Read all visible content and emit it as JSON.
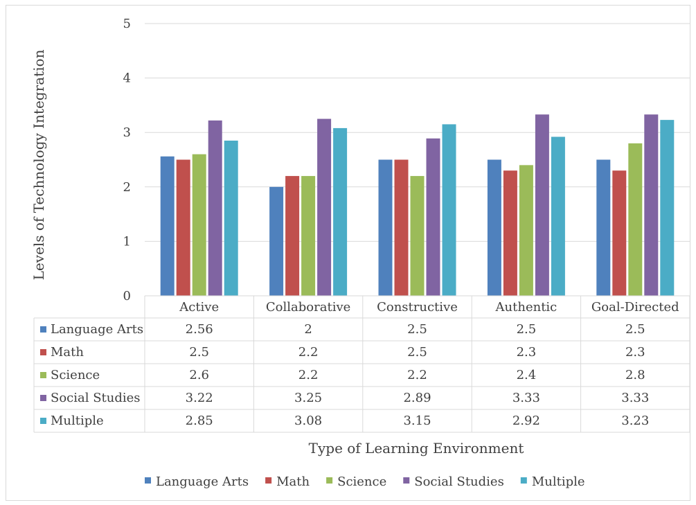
{
  "chart_data": {
    "type": "bar",
    "categories": [
      "Active",
      "Collaborative",
      "Constructive",
      "Authentic",
      "Goal-Directed"
    ],
    "series": [
      {
        "name": "Language Arts",
        "color": "#4f81bd",
        "values": [
          2.56,
          2,
          2.5,
          2.5,
          2.5
        ]
      },
      {
        "name": "Math",
        "color": "#c0504d",
        "values": [
          2.5,
          2.2,
          2.5,
          2.3,
          2.3
        ]
      },
      {
        "name": "Science",
        "color": "#9bbb59",
        "values": [
          2.6,
          2.2,
          2.2,
          2.4,
          2.8
        ]
      },
      {
        "name": "Social Studies",
        "color": "#8064a2",
        "values": [
          3.22,
          3.25,
          2.89,
          3.33,
          3.33
        ]
      },
      {
        "name": "Multiple",
        "color": "#4bacc6",
        "values": [
          2.85,
          3.08,
          3.15,
          2.92,
          3.23
        ]
      }
    ],
    "ylabel": "Levels of Technology Integration",
    "xlabel": "Type of Learning Environment",
    "ylim": [
      0,
      5
    ],
    "yticks": [
      0,
      1,
      2,
      3,
      4,
      5
    ],
    "grid": true,
    "data_table": true,
    "legend_position": "bottom"
  }
}
